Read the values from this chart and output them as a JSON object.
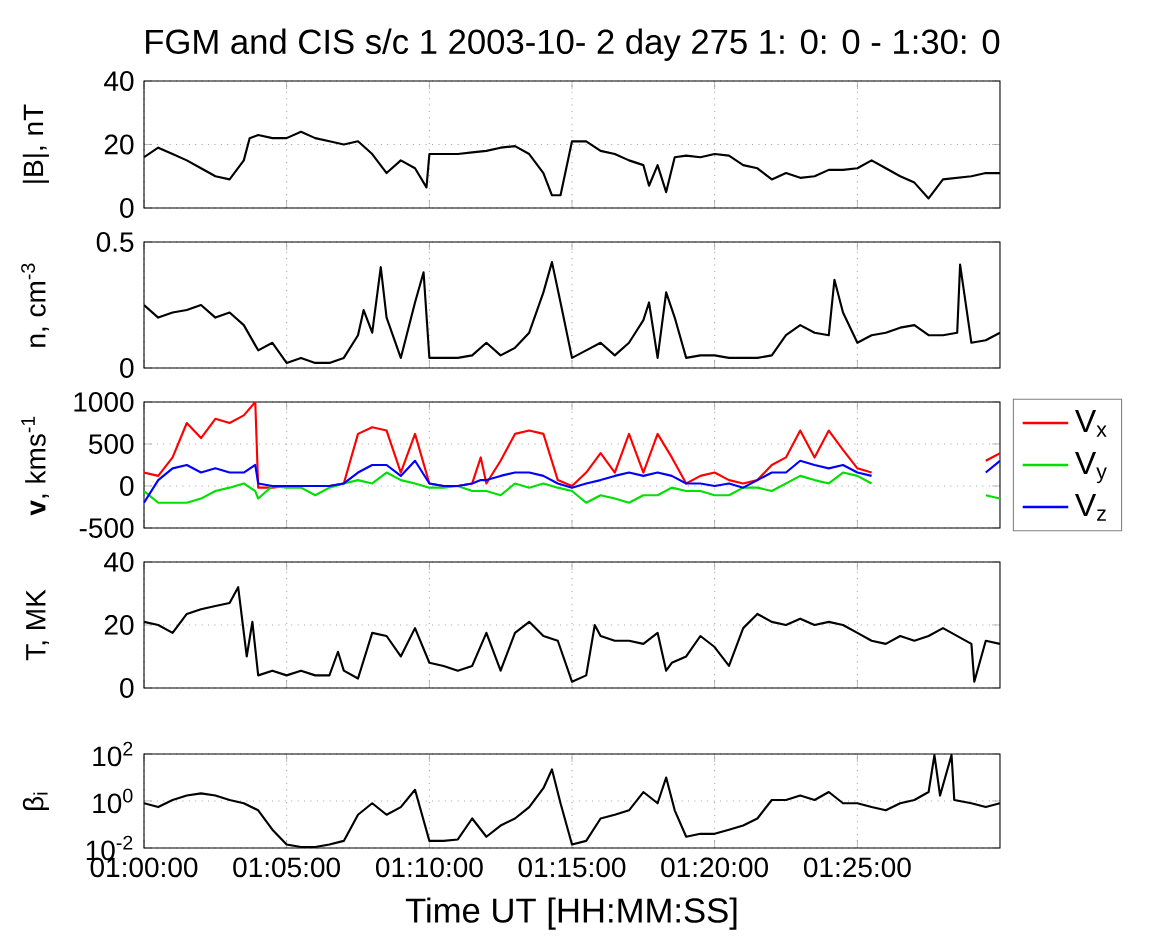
{
  "chart_data": [
    {
      "type": "line",
      "title": "FGM and CIS s/c 1 2003-10- 2 day 275  1: 0: 0 -  1:30: 0",
      "ylabel": "|B|, nT",
      "color": "#000000",
      "grid": true,
      "tick_labels": "y",
      "xlim": [
        1,
        1.5
      ],
      "ylim": [
        0,
        40
      ],
      "yticks": [
        0,
        20,
        40
      ],
      "xticks": [
        {
          "value": 1,
          "label": null
        },
        {
          "value": 1.0833,
          "label": null
        },
        {
          "value": 1.1667,
          "label": null
        },
        {
          "value": 1.25,
          "label": null
        },
        {
          "value": 1.3333,
          "label": null
        },
        {
          "value": 1.4167,
          "label": null
        }
      ],
      "x": [
        1,
        1.0083,
        1.0167,
        1.025,
        1.0333,
        1.0417,
        1.05,
        1.0583,
        1.0617,
        1.0667,
        1.075,
        1.0833,
        1.0917,
        1.1,
        1.1083,
        1.1167,
        1.125,
        1.1333,
        1.1417,
        1.15,
        1.1583,
        1.165,
        1.1667,
        1.175,
        1.1833,
        1.1917,
        1.2,
        1.2083,
        1.2167,
        1.225,
        1.2333,
        1.2383,
        1.2433,
        1.25,
        1.2583,
        1.2667,
        1.275,
        1.2833,
        1.2917,
        1.295,
        1.3,
        1.305,
        1.31,
        1.3167,
        1.325,
        1.3333,
        1.3417,
        1.35,
        1.3583,
        1.3667,
        1.375,
        1.3833,
        1.3917,
        1.4,
        1.4083,
        1.4167,
        1.425,
        1.4333,
        1.4417,
        1.45,
        1.4583,
        1.4667,
        1.475,
        1.4833,
        1.4917,
        1.5
      ],
      "values": [
        16,
        19,
        17,
        15,
        12.5,
        10,
        9,
        15,
        22,
        23,
        22,
        22,
        24,
        22,
        21,
        20,
        21,
        17,
        11,
        15,
        12.5,
        6.5,
        17,
        17,
        17,
        17.5,
        18,
        19,
        19.5,
        17,
        11,
        4,
        4,
        21,
        21,
        18,
        17,
        15,
        13.5,
        7,
        13.5,
        5,
        16,
        16.5,
        16,
        17,
        16.5,
        13.5,
        12.5,
        9,
        11,
        9.5,
        10,
        12,
        12,
        12.5,
        15,
        12.5,
        10,
        8,
        3,
        9,
        9.5,
        10,
        11,
        11
      ]
    },
    {
      "type": "line",
      "ylabel": "n, cm$^{-3}$",
      "color": "#000000",
      "grid": true,
      "tick_labels": "y",
      "xlim": [
        1,
        1.5
      ],
      "ylim": [
        0,
        0.5
      ],
      "yticks": [
        0,
        0.5
      ],
      "xticks": [
        {
          "value": 1,
          "label": null
        },
        {
          "value": 1.0833,
          "label": null
        },
        {
          "value": 1.1667,
          "label": null
        },
        {
          "value": 1.25,
          "label": null
        },
        {
          "value": 1.3333,
          "label": null
        },
        {
          "value": 1.4167,
          "label": null
        }
      ],
      "x": [
        1,
        1.0083,
        1.0167,
        1.025,
        1.0333,
        1.0417,
        1.05,
        1.0583,
        1.0667,
        1.075,
        1.0833,
        1.0917,
        1.1,
        1.1083,
        1.1167,
        1.125,
        1.1283,
        1.1333,
        1.1383,
        1.1417,
        1.15,
        1.1583,
        1.1633,
        1.1667,
        1.175,
        1.1833,
        1.1917,
        1.2,
        1.2083,
        1.2167,
        1.225,
        1.2333,
        1.2383,
        1.2433,
        1.25,
        1.2583,
        1.2667,
        1.275,
        1.2833,
        1.2917,
        1.295,
        1.3,
        1.305,
        1.31,
        1.3167,
        1.325,
        1.3333,
        1.3417,
        1.35,
        1.3583,
        1.3667,
        1.375,
        1.3833,
        1.3917,
        1.4,
        1.4033,
        1.4083,
        1.4167,
        1.425,
        1.4333,
        1.4417,
        1.45,
        1.4583,
        1.4667,
        1.475,
        1.4767,
        1.4833,
        1.4917,
        1.5
      ],
      "values": [
        0.25,
        0.2,
        0.22,
        0.23,
        0.25,
        0.2,
        0.22,
        0.17,
        0.07,
        0.1,
        0.02,
        0.04,
        0.02,
        0.02,
        0.04,
        0.13,
        0.23,
        0.14,
        0.4,
        0.2,
        0.04,
        0.26,
        0.38,
        0.04,
        0.04,
        0.04,
        0.05,
        0.1,
        0.05,
        0.08,
        0.14,
        0.3,
        0.42,
        0.26,
        0.04,
        0.07,
        0.1,
        0.05,
        0.1,
        0.19,
        0.26,
        0.04,
        0.3,
        0.2,
        0.04,
        0.05,
        0.05,
        0.04,
        0.04,
        0.04,
        0.05,
        0.13,
        0.17,
        0.14,
        0.13,
        0.35,
        0.22,
        0.1,
        0.13,
        0.14,
        0.16,
        0.17,
        0.13,
        0.13,
        0.14,
        0.41,
        0.1,
        0.11,
        0.14
      ]
    },
    {
      "type": "line",
      "ylabel": "**v**, kms$^{-1}$",
      "grid": true,
      "legend": "right",
      "tick_labels": "y",
      "xlim": [
        1,
        1.5
      ],
      "ylim": [
        -500,
        1000
      ],
      "yticks": [
        -500,
        0,
        500,
        1000
      ],
      "xticks": [
        {
          "value": 1,
          "label": null
        },
        {
          "value": 1.0833,
          "label": null
        },
        {
          "value": 1.1667,
          "label": null
        },
        {
          "value": 1.25,
          "label": null
        },
        {
          "value": 1.3333,
          "label": null
        },
        {
          "value": 1.4167,
          "label": null
        }
      ],
      "x": [
        1,
        1.0083,
        1.0167,
        1.025,
        1.0333,
        1.0417,
        1.05,
        1.0583,
        1.065,
        1.0667,
        1.075,
        1.0833,
        1.0917,
        1.1,
        1.1083,
        1.1167,
        1.125,
        1.1333,
        1.1417,
        1.15,
        1.1583,
        1.1667,
        1.175,
        1.1833,
        1.1917,
        1.1967,
        1.2,
        1.2083,
        1.2167,
        1.225,
        1.2333,
        1.2417,
        1.25,
        1.2583,
        1.2667,
        1.275,
        1.2833,
        1.2917,
        1.3,
        1.3083,
        1.3167,
        1.325,
        1.3333,
        1.3417,
        1.35,
        1.3583,
        1.3667,
        1.375,
        1.3833,
        1.3917,
        1.4,
        1.4083,
        1.4167,
        1.425,
        1.4333,
        1.4417,
        1.45,
        1.4583,
        1.4667,
        1.475,
        1.4833,
        1.4917,
        1.5
      ],
      "series": [
        {
          "name": "V$_{x}$",
          "color": "#ff0000",
          "values": [
            160,
            120,
            340,
            750,
            570,
            800,
            750,
            840,
            1000,
            -20,
            -20,
            0,
            0,
            0,
            0,
            30,
            620,
            700,
            660,
            160,
            620,
            30,
            0,
            0,
            30,
            340,
            30,
            300,
            620,
            660,
            620,
            70,
            0,
            160,
            390,
            160,
            620,
            160,
            620,
            340,
            30,
            120,
            160,
            70,
            30,
            70,
            250,
            340,
            660,
            340,
            660,
            430,
            210,
            160,
            null,
            null,
            null,
            null,
            null,
            null,
            null,
            300,
            390
          ]
        },
        {
          "name": "V$_{y}$",
          "color": "#00e000",
          "values": [
            -60,
            -200,
            -200,
            -200,
            -150,
            -60,
            -20,
            30,
            -60,
            -150,
            0,
            -20,
            -20,
            -110,
            -20,
            30,
            70,
            30,
            160,
            70,
            30,
            -20,
            -20,
            0,
            -60,
            -60,
            -60,
            -110,
            30,
            -20,
            30,
            -20,
            -60,
            -200,
            -110,
            -150,
            -200,
            -110,
            -110,
            -20,
            -60,
            -60,
            -110,
            -110,
            -20,
            -20,
            -60,
            30,
            120,
            70,
            30,
            160,
            120,
            30,
            null,
            null,
            null,
            null,
            null,
            null,
            null,
            -110,
            -150
          ]
        },
        {
          "name": "V$_{z}$",
          "color": "#0000ff",
          "values": [
            -200,
            70,
            210,
            250,
            160,
            210,
            160,
            160,
            250,
            30,
            0,
            0,
            0,
            0,
            0,
            30,
            160,
            250,
            250,
            120,
            300,
            30,
            0,
            0,
            30,
            70,
            70,
            120,
            160,
            160,
            120,
            30,
            -20,
            30,
            70,
            120,
            160,
            120,
            160,
            120,
            30,
            30,
            0,
            30,
            -20,
            70,
            160,
            160,
            300,
            250,
            210,
            250,
            160,
            120,
            null,
            null,
            null,
            null,
            null,
            null,
            null,
            160,
            300
          ]
        }
      ]
    },
    {
      "type": "line",
      "ylabel": "T, MK",
      "color": "#000000",
      "grid": true,
      "tick_labels": "y",
      "xlim": [
        1,
        1.5
      ],
      "ylim": [
        0,
        40
      ],
      "yticks": [
        0,
        20,
        40
      ],
      "xticks": [
        {
          "value": 1,
          "label": null
        },
        {
          "value": 1.0833,
          "label": null
        },
        {
          "value": 1.1667,
          "label": null
        },
        {
          "value": 1.25,
          "label": null
        },
        {
          "value": 1.3333,
          "label": null
        },
        {
          "value": 1.4167,
          "label": null
        }
      ],
      "x": [
        1,
        1.0083,
        1.0167,
        1.025,
        1.0333,
        1.0417,
        1.05,
        1.055,
        1.06,
        1.0633,
        1.0667,
        1.075,
        1.0833,
        1.0917,
        1.1,
        1.1083,
        1.1133,
        1.1167,
        1.125,
        1.1333,
        1.1417,
        1.15,
        1.1583,
        1.1667,
        1.175,
        1.1833,
        1.1917,
        1.2,
        1.2083,
        1.2167,
        1.225,
        1.2333,
        1.2417,
        1.25,
        1.2583,
        1.2633,
        1.2667,
        1.275,
        1.2833,
        1.2917,
        1.3,
        1.305,
        1.3083,
        1.3167,
        1.325,
        1.3333,
        1.3417,
        1.35,
        1.3583,
        1.3667,
        1.375,
        1.3833,
        1.3917,
        1.4,
        1.4083,
        1.4167,
        1.425,
        1.4333,
        1.4417,
        1.45,
        1.4583,
        1.4667,
        1.475,
        1.4833,
        1.485,
        1.4917,
        1.5
      ],
      "values": [
        21,
        20,
        17.5,
        23.5,
        25,
        26,
        27,
        32,
        10,
        21,
        4,
        5.5,
        4,
        5.5,
        4,
        4,
        11.5,
        5.5,
        3,
        17.5,
        16.5,
        10,
        19,
        8,
        7,
        5.5,
        7,
        17.5,
        5.5,
        17.5,
        21,
        16.5,
        15,
        2,
        4,
        20,
        16.5,
        15,
        15,
        14,
        17.5,
        5.5,
        8,
        10,
        16.5,
        13,
        7,
        19,
        23.5,
        21,
        20,
        22,
        20,
        21,
        20,
        17.5,
        15,
        14,
        16.5,
        15,
        16.5,
        19,
        16.5,
        14,
        2,
        15,
        14
      ]
    },
    {
      "type": "line",
      "ylabel": "β$_{i}$",
      "xlabel": "Time UT [HH:MM:SS]",
      "color": "#000000",
      "grid": true,
      "log": "y",
      "xlim": [
        1,
        1.5
      ],
      "ylim": [
        0.01,
        100
      ],
      "yticks": [
        {
          "value": 0.01,
          "label": "10$^{-2}$"
        },
        {
          "value": 1,
          "label": "10$^{0}$"
        },
        {
          "value": 100,
          "label": "10$^{2}$"
        }
      ],
      "xticks": [
        {
          "value": 1,
          "label": "01:00:00"
        },
        {
          "value": 1.0833,
          "label": "01:05:00"
        },
        {
          "value": 1.1667,
          "label": "01:10:00"
        },
        {
          "value": 1.25,
          "label": "01:15:00"
        },
        {
          "value": 1.3333,
          "label": "01:20:00"
        },
        {
          "value": 1.4167,
          "label": "01:25:00"
        }
      ],
      "x": [
        1,
        1.0083,
        1.0167,
        1.025,
        1.0333,
        1.0417,
        1.05,
        1.0583,
        1.0667,
        1.075,
        1.0833,
        1.0917,
        1.1,
        1.1083,
        1.1167,
        1.125,
        1.1333,
        1.1417,
        1.15,
        1.1583,
        1.1667,
        1.175,
        1.1833,
        1.1917,
        1.2,
        1.2083,
        1.2167,
        1.225,
        1.2333,
        1.2383,
        1.2433,
        1.25,
        1.2583,
        1.2667,
        1.275,
        1.2833,
        1.2917,
        1.3,
        1.305,
        1.31,
        1.3167,
        1.325,
        1.3333,
        1.3417,
        1.35,
        1.3583,
        1.3667,
        1.375,
        1.3833,
        1.3917,
        1.4,
        1.4083,
        1.4167,
        1.425,
        1.4333,
        1.4417,
        1.45,
        1.4583,
        1.4617,
        1.465,
        1.4717,
        1.4733,
        1.4833,
        1.4917,
        1.5
      ],
      "values": [
        0.8,
        0.55,
        1.1,
        1.7,
        2.1,
        1.7,
        1.1,
        0.8,
        0.4,
        0.06,
        0.014,
        0.011,
        0.011,
        0.014,
        0.02,
        0.26,
        0.8,
        0.26,
        0.55,
        3,
        0.02,
        0.02,
        0.023,
        0.18,
        0.03,
        0.09,
        0.18,
        0.55,
        3.5,
        22,
        0.8,
        0.014,
        0.02,
        0.18,
        0.26,
        0.4,
        2.4,
        0.8,
        10,
        0.4,
        0.03,
        0.04,
        0.04,
        0.06,
        0.09,
        0.18,
        1.1,
        1.1,
        1.7,
        1.1,
        2.4,
        0.8,
        0.8,
        0.55,
        0.4,
        0.8,
        1.1,
        2.4,
        90,
        1.7,
        90,
        1.1,
        0.8,
        0.55,
        0.8
      ]
    }
  ]
}
